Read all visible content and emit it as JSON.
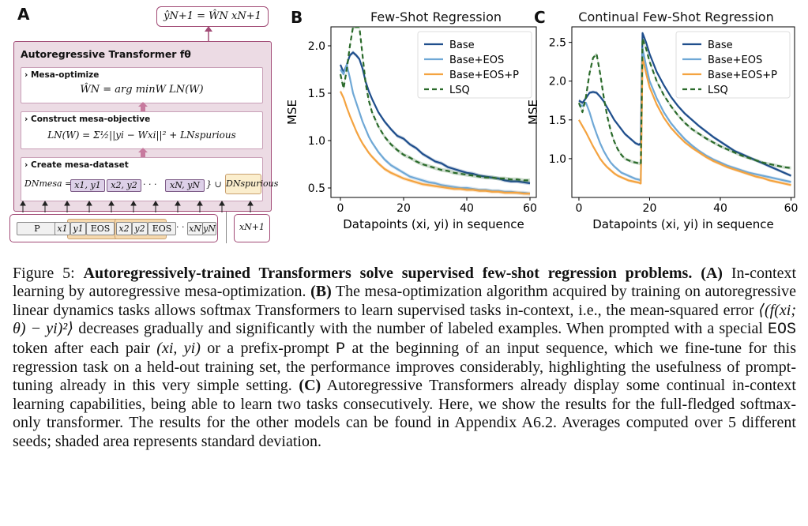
{
  "panel_a": {
    "letter": "A",
    "output_eq": "ŷN+1 = ŴN xN+1",
    "transformer_title": "Autoregressive Transformer fθ",
    "mesa_optimize": {
      "title": "› Mesa-optimize",
      "eq": "ŴN = arg minW LN(W)"
    },
    "construct": {
      "title": "› Construct mesa-objective",
      "eq": "LN(W) = Σ½||yi − Wxi||² + LNspurious"
    },
    "create": {
      "title": "› Create mesa-dataset",
      "lhs": "DNmesa = {",
      "tokens": [
        "x1, y1",
        "x2, y2",
        "xN, yN"
      ],
      "dots": "· · ·",
      "union": "} ∪",
      "spurious": "DNspurious"
    },
    "input_tokens": [
      "P",
      "x1",
      "y1",
      "EOS",
      "x2",
      "y2",
      "EOS",
      "· · ·",
      "xN",
      "yN"
    ],
    "next_token": "xN+1"
  },
  "chart_data": [
    {
      "type": "line",
      "letter": "B",
      "title": "Few-Shot Regression",
      "xlabel": "Datapoints (xi, yi) in sequence",
      "ylabel": "MSE",
      "xlim": [
        -3,
        62
      ],
      "ylim": [
        0.4,
        2.2
      ],
      "xticks": [
        0,
        20,
        40,
        60
      ],
      "yticks": [
        0.5,
        1.0,
        1.5,
        2.0
      ],
      "ytick_labels": [
        "0.5",
        "1.0",
        "1.5",
        "2.0"
      ],
      "legend_position": "top-right",
      "series": [
        {
          "name": "Base",
          "color": "#1f4e8c",
          "dash": "",
          "x": [
            0,
            1,
            2,
            3,
            4,
            5,
            6,
            7,
            8,
            9,
            10,
            12,
            14,
            16,
            18,
            20,
            22,
            24,
            26,
            28,
            30,
            32,
            34,
            36,
            38,
            40,
            42,
            44,
            46,
            48,
            50,
            52,
            54,
            56,
            58,
            60
          ],
          "y": [
            1.8,
            1.72,
            1.8,
            1.9,
            1.93,
            1.9,
            1.86,
            1.76,
            1.62,
            1.52,
            1.44,
            1.3,
            1.2,
            1.12,
            1.05,
            1.02,
            0.96,
            0.92,
            0.86,
            0.82,
            0.78,
            0.76,
            0.72,
            0.7,
            0.68,
            0.66,
            0.65,
            0.63,
            0.62,
            0.61,
            0.6,
            0.58,
            0.57,
            0.57,
            0.56,
            0.55
          ]
        },
        {
          "name": "Base+EOS",
          "color": "#6fa8d6",
          "dash": "",
          "x": [
            0,
            1,
            2,
            3,
            4,
            5,
            6,
            7,
            8,
            9,
            10,
            12,
            14,
            16,
            18,
            20,
            22,
            24,
            26,
            28,
            30,
            32,
            34,
            36,
            38,
            40,
            42,
            44,
            46,
            48,
            50,
            52,
            54,
            56,
            58,
            60
          ],
          "y": [
            1.75,
            1.7,
            1.8,
            1.66,
            1.5,
            1.4,
            1.3,
            1.2,
            1.12,
            1.04,
            0.98,
            0.88,
            0.8,
            0.74,
            0.7,
            0.66,
            0.62,
            0.6,
            0.58,
            0.56,
            0.55,
            0.53,
            0.52,
            0.51,
            0.5,
            0.5,
            0.49,
            0.48,
            0.48,
            0.47,
            0.47,
            0.46,
            0.46,
            0.45,
            0.45,
            0.44
          ]
        },
        {
          "name": "Base+EOS+P",
          "color": "#f4a340",
          "dash": "",
          "x": [
            0,
            1,
            2,
            3,
            4,
            5,
            6,
            7,
            8,
            9,
            10,
            12,
            14,
            16,
            18,
            20,
            22,
            24,
            26,
            28,
            30,
            32,
            34,
            36,
            38,
            40,
            42,
            44,
            46,
            48,
            50,
            52,
            54,
            56,
            58,
            60
          ],
          "y": [
            1.52,
            1.45,
            1.35,
            1.26,
            1.18,
            1.1,
            1.03,
            0.97,
            0.92,
            0.87,
            0.83,
            0.76,
            0.7,
            0.66,
            0.63,
            0.6,
            0.58,
            0.56,
            0.54,
            0.53,
            0.52,
            0.51,
            0.5,
            0.49,
            0.49,
            0.48,
            0.48,
            0.47,
            0.47,
            0.46,
            0.46,
            0.45,
            0.45,
            0.45,
            0.44,
            0.44
          ]
        },
        {
          "name": "LSQ",
          "color": "#2a6a2a",
          "dash": "6,4",
          "x": [
            0,
            1,
            2,
            3,
            4,
            5,
            6,
            7,
            8,
            9,
            10,
            12,
            14,
            16,
            18,
            20,
            22,
            24,
            26,
            28,
            30,
            32,
            34,
            36,
            38,
            40,
            42,
            44,
            46,
            48,
            50,
            52,
            54,
            56,
            58,
            60
          ],
          "y": [
            1.7,
            1.55,
            1.75,
            2.0,
            2.2,
            2.2,
            2.2,
            1.9,
            1.6,
            1.42,
            1.3,
            1.15,
            1.04,
            0.96,
            0.9,
            0.85,
            0.82,
            0.78,
            0.75,
            0.73,
            0.71,
            0.69,
            0.68,
            0.66,
            0.65,
            0.64,
            0.63,
            0.62,
            0.61,
            0.61,
            0.6,
            0.6,
            0.59,
            0.59,
            0.58,
            0.58
          ]
        }
      ]
    },
    {
      "type": "line",
      "letter": "C",
      "title": "Continual Few-Shot Regression",
      "xlabel": "Datapoints (xi, yi) in sequence",
      "ylabel": "MSE",
      "xlim": [
        -2,
        61
      ],
      "ylim": [
        0.5,
        2.7
      ],
      "xticks": [
        0,
        20,
        40,
        60
      ],
      "yticks": [
        1.0,
        1.5,
        2.0,
        2.5
      ],
      "ytick_labels": [
        "1.0",
        "1.5",
        "2.0",
        "2.5"
      ],
      "legend_position": "top-right",
      "series": [
        {
          "name": "Base",
          "color": "#1f4e8c",
          "dash": "",
          "x": [
            0,
            1,
            2,
            3,
            4,
            5,
            6,
            7,
            8,
            9,
            10,
            11,
            12,
            13,
            14,
            15,
            16,
            17,
            17.5,
            18,
            19,
            20,
            22,
            24,
            26,
            28,
            30,
            32,
            34,
            36,
            38,
            40,
            42,
            44,
            46,
            48,
            50,
            52,
            54,
            56,
            58,
            60
          ],
          "y": [
            1.75,
            1.72,
            1.78,
            1.85,
            1.86,
            1.85,
            1.8,
            1.74,
            1.66,
            1.58,
            1.5,
            1.44,
            1.38,
            1.32,
            1.28,
            1.24,
            1.2,
            1.18,
            1.2,
            2.62,
            2.5,
            2.35,
            2.12,
            1.95,
            1.8,
            1.68,
            1.58,
            1.5,
            1.42,
            1.35,
            1.28,
            1.22,
            1.16,
            1.1,
            1.06,
            1.02,
            0.98,
            0.94,
            0.9,
            0.86,
            0.82,
            0.78
          ]
        },
        {
          "name": "Base+EOS",
          "color": "#6fa8d6",
          "dash": "",
          "x": [
            0,
            1,
            2,
            3,
            4,
            5,
            6,
            7,
            8,
            9,
            10,
            11,
            12,
            13,
            14,
            15,
            16,
            17,
            17.5,
            18,
            19,
            20,
            22,
            24,
            26,
            28,
            30,
            32,
            34,
            36,
            38,
            40,
            42,
            44,
            46,
            48,
            50,
            52,
            54,
            56,
            58,
            60
          ],
          "y": [
            1.7,
            1.68,
            1.72,
            1.6,
            1.45,
            1.32,
            1.2,
            1.1,
            1.02,
            0.95,
            0.9,
            0.86,
            0.82,
            0.8,
            0.78,
            0.76,
            0.74,
            0.73,
            0.72,
            2.42,
            2.2,
            2.0,
            1.78,
            1.6,
            1.46,
            1.35,
            1.25,
            1.17,
            1.1,
            1.04,
            0.99,
            0.95,
            0.91,
            0.88,
            0.85,
            0.82,
            0.8,
            0.78,
            0.76,
            0.74,
            0.72,
            0.7
          ]
        },
        {
          "name": "Base+EOS+P",
          "color": "#f4a340",
          "dash": "",
          "x": [
            0,
            1,
            2,
            3,
            4,
            5,
            6,
            7,
            8,
            9,
            10,
            11,
            12,
            13,
            14,
            15,
            16,
            17,
            17.5,
            18,
            19,
            20,
            22,
            24,
            26,
            28,
            30,
            32,
            34,
            36,
            38,
            40,
            42,
            44,
            46,
            48,
            50,
            52,
            54,
            56,
            58,
            60
          ],
          "y": [
            1.5,
            1.42,
            1.34,
            1.25,
            1.16,
            1.08,
            1.0,
            0.94,
            0.89,
            0.85,
            0.81,
            0.78,
            0.76,
            0.74,
            0.72,
            0.71,
            0.7,
            0.69,
            0.68,
            2.3,
            2.1,
            1.92,
            1.7,
            1.53,
            1.4,
            1.3,
            1.21,
            1.14,
            1.08,
            1.02,
            0.97,
            0.93,
            0.89,
            0.86,
            0.83,
            0.8,
            0.77,
            0.75,
            0.72,
            0.7,
            0.68,
            0.66
          ]
        },
        {
          "name": "LSQ",
          "color": "#2a6a2a",
          "dash": "6,4",
          "x": [
            0,
            1,
            2,
            3,
            4,
            5,
            6,
            7,
            8,
            9,
            10,
            11,
            12,
            13,
            14,
            15,
            16,
            17,
            17.5,
            18,
            19,
            20,
            22,
            24,
            26,
            28,
            30,
            32,
            34,
            36,
            38,
            40,
            42,
            44,
            46,
            48,
            50,
            52,
            54,
            56,
            58,
            60
          ],
          "y": [
            1.72,
            1.6,
            1.8,
            2.1,
            2.3,
            2.35,
            2.1,
            1.8,
            1.55,
            1.36,
            1.22,
            1.12,
            1.05,
            1.0,
            0.98,
            0.96,
            0.95,
            0.94,
            0.93,
            2.55,
            2.42,
            2.25,
            2.0,
            1.82,
            1.68,
            1.56,
            1.46,
            1.38,
            1.32,
            1.26,
            1.21,
            1.16,
            1.12,
            1.08,
            1.04,
            1.01,
            0.98,
            0.95,
            0.93,
            0.91,
            0.89,
            0.88
          ]
        }
      ]
    }
  ],
  "caption": {
    "label": "Figure 5:",
    "title": "Autoregressively-trained Transformers solve supervised few-shot regression problems.",
    "a_label": "(A)",
    "a_text": "In-context learning by autoregressive mesa-optimization.",
    "b_label": "(B)",
    "b_text_1": "The mesa-optimization algorithm acquired by training on autoregressive linear dynamics tasks allows softmax Transformers to learn supervised tasks in-context, i.e., the mean-squared error",
    "mse_expr": "⟨(f(xi; θ) − yi)²⟩",
    "b_text_2": "decreases gradually and significantly with the number of labeled examples. When prompted with a special",
    "eos_token": "EOS",
    "b_text_3": "token after each pair",
    "pair_expr": "(xi, yi)",
    "b_text_4": "or a prefix-prompt",
    "p_token": "P",
    "b_text_5": "at the beginning of an input sequence, which we fine-tune for this regression task on a held-out training set, the performance improves considerably, highlighting the usefulness of prompt-tuning already in this very simple setting.",
    "c_label": "(C)",
    "c_text": "Autoregressive Transformers already display some continual in-context learning capabilities, being able to learn two tasks consecutively. Here, we show the results for the full-fledged softmax-only transformer. The results for the other models can be found in Appendix A6.2. Averages computed over 5 different seeds; shaded area represents standard deviation."
  }
}
